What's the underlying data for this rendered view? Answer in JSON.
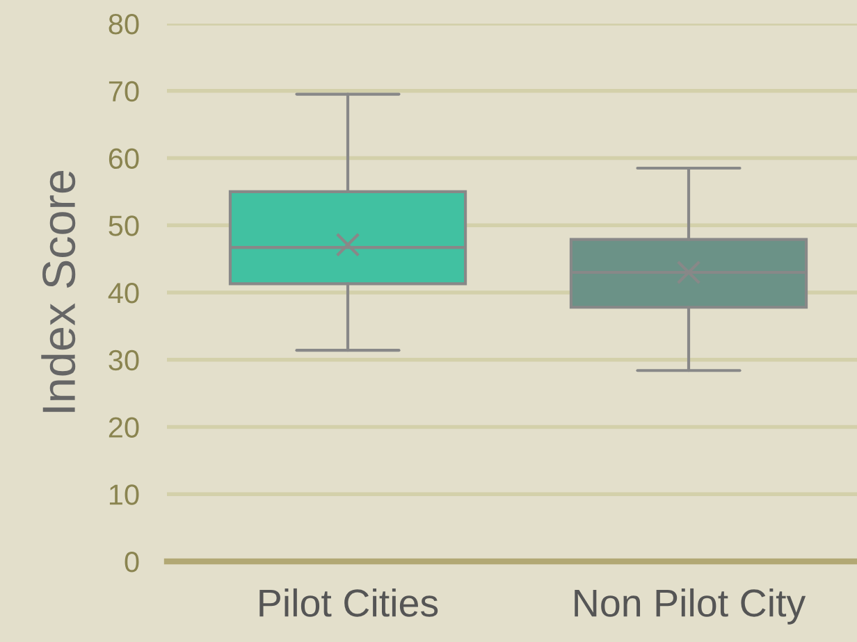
{
  "chart_data": {
    "type": "box",
    "ylabel": "Index Score",
    "categories": [
      "Pilot Cities",
      "Non Pilot City"
    ],
    "series": [
      {
        "colors": [
          "#41c1a1",
          "#6b9287"
        ],
        "boxes": [
          {
            "low": 31.4,
            "q1": 41.3,
            "median": 46.7,
            "q3": 55.0,
            "high": 69.5,
            "mean": 47.1
          },
          {
            "low": 28.4,
            "q1": 37.8,
            "median": 43.0,
            "q3": 47.9,
            "high": 58.5,
            "mean": 43.0
          }
        ]
      }
    ],
    "ylim": [
      0,
      80
    ],
    "yticks": [
      0,
      10,
      20,
      30,
      40,
      50,
      60,
      70,
      80
    ],
    "grid": "y"
  }
}
